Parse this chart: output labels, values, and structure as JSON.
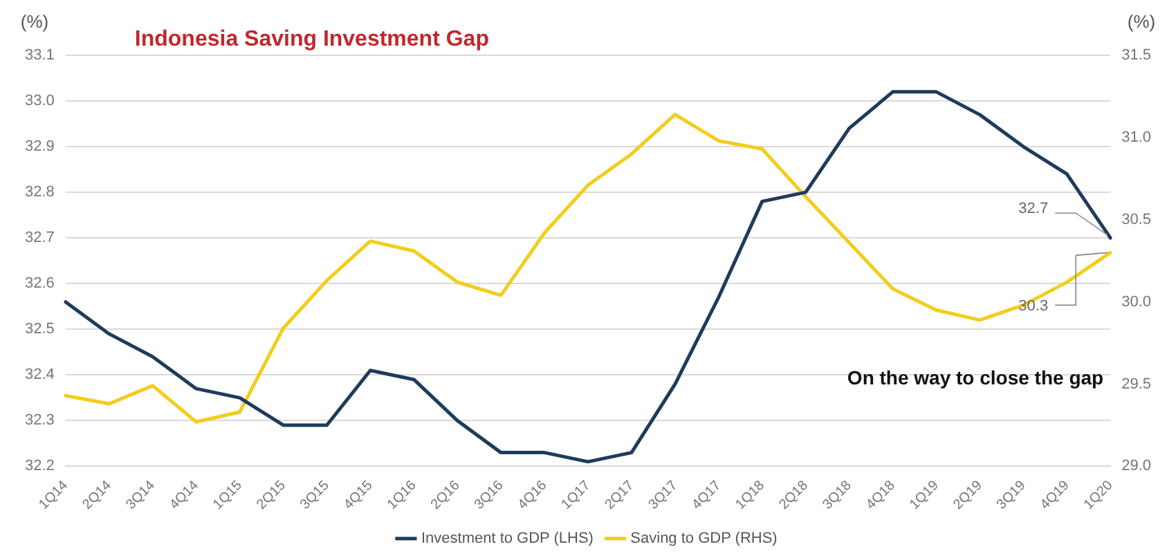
{
  "chart_data": {
    "type": "line",
    "title": "Indonesia Saving Investment Gap",
    "ylabel": "(%)",
    "y2label": "(%)",
    "categories": [
      "1Q14",
      "2Q14",
      "3Q14",
      "4Q14",
      "1Q15",
      "2Q15",
      "3Q15",
      "4Q15",
      "1Q16",
      "2Q16",
      "3Q16",
      "4Q16",
      "1Q17",
      "2Q17",
      "3Q17",
      "4Q17",
      "1Q18",
      "2Q18",
      "3Q18",
      "4Q18",
      "1Q19",
      "2Q19",
      "3Q19",
      "4Q19",
      "1Q20"
    ],
    "series": [
      {
        "name": "Investment to GDP (LHS)",
        "color": "#1f3b5c",
        "values": [
          32.56,
          32.49,
          32.44,
          32.37,
          32.35,
          32.29,
          32.29,
          32.41,
          32.39,
          32.3,
          32.23,
          32.23,
          32.21,
          32.23,
          32.38,
          32.57,
          32.78,
          32.8,
          32.94,
          33.02,
          33.02,
          32.97,
          32.9,
          32.84,
          32.7
        ],
        "value_labels": [
          null,
          null,
          null,
          null,
          null,
          null,
          null,
          null,
          null,
          null,
          null,
          null,
          null,
          null,
          null,
          null,
          null,
          null,
          null,
          null,
          null,
          null,
          null,
          null,
          "32.7"
        ]
      },
      {
        "name": "Saving to GDP (RHS)",
        "color": "#f2cd1c",
        "axis": "y2",
        "values": [
          29.43,
          29.38,
          29.49,
          29.27,
          29.33,
          29.84,
          30.13,
          30.37,
          30.31,
          30.12,
          30.04,
          30.42,
          30.71,
          30.9,
          31.14,
          30.98,
          30.93,
          30.64,
          30.36,
          30.08,
          29.95,
          29.89,
          29.98,
          30.12,
          30.3
        ],
        "value_labels": [
          null,
          null,
          null,
          null,
          null,
          null,
          null,
          null,
          null,
          null,
          null,
          null,
          null,
          null,
          null,
          null,
          null,
          null,
          null,
          null,
          null,
          null,
          null,
          null,
          "30.3"
        ]
      }
    ],
    "ylim": [
      32.2,
      33.1
    ],
    "yticks": [
      {
        "value": 32.2,
        "label": "32.2"
      },
      {
        "value": 32.3,
        "label": "32.3"
      },
      {
        "value": 32.4,
        "label": "32.4"
      },
      {
        "value": 32.5,
        "label": "32.5"
      },
      {
        "value": 32.6,
        "label": "32.6"
      },
      {
        "value": 32.7,
        "label": "32.7"
      },
      {
        "value": 32.8,
        "label": "32.8"
      },
      {
        "value": 32.9,
        "label": "32.9"
      },
      {
        "value": 33.0,
        "label": "33.0"
      },
      {
        "value": 33.1,
        "label": "33.1"
      }
    ],
    "y2lim": [
      29.0,
      31.5
    ],
    "y2ticks": [
      {
        "value": 29.0,
        "label": "29.0"
      },
      {
        "value": 29.5,
        "label": "29.5"
      },
      {
        "value": 30.0,
        "label": "30.0"
      },
      {
        "value": 30.5,
        "label": "30.5"
      },
      {
        "value": 31.0,
        "label": "31.0"
      },
      {
        "value": 31.5,
        "label": "31.5"
      }
    ],
    "annotations": [
      "On the way to close the gap"
    ],
    "grid": "y",
    "legend": "bottom",
    "marker": "none",
    "line_style": "solid"
  }
}
